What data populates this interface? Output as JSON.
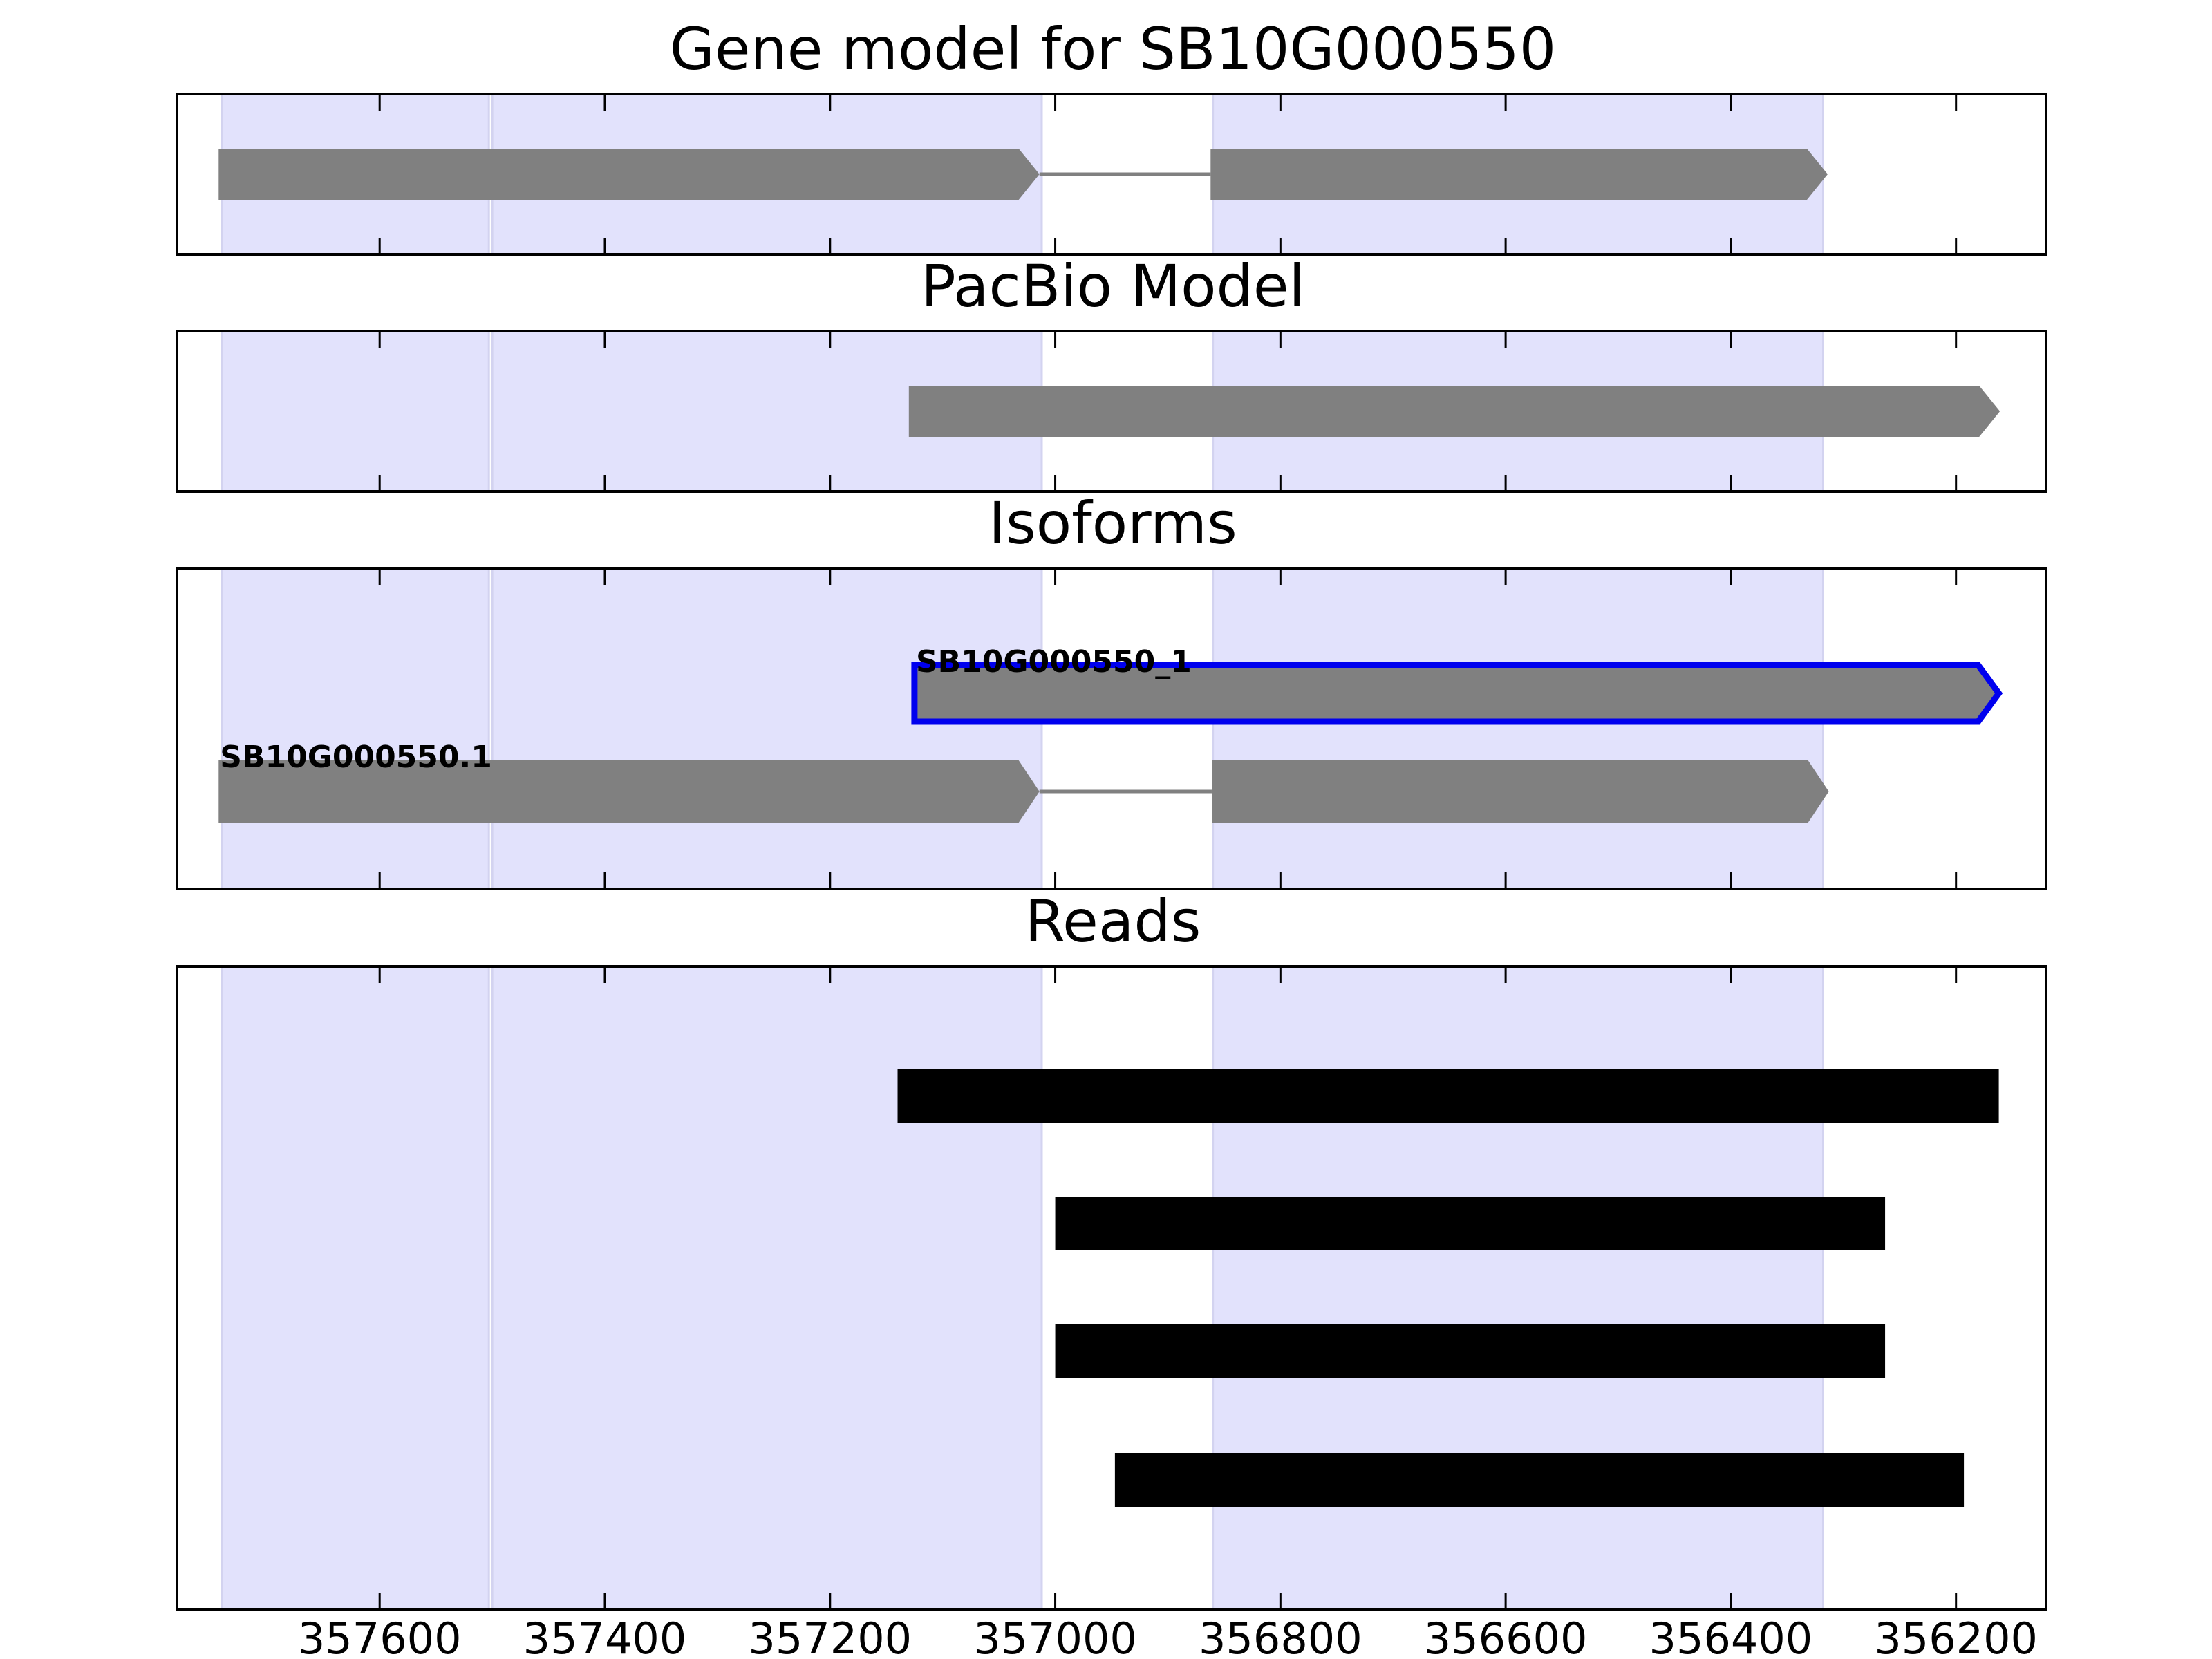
{
  "colors": {
    "shade": "#e2e2fc",
    "shade_edge": "#d3d3f0",
    "feature": "#808080",
    "intron_line": "#808080",
    "highlight_border": "#0000ee",
    "read": "#000000",
    "frame": "#000000"
  },
  "chart_data": {
    "type": "gene-track",
    "x_axis": {
      "lim": [
        357780,
        356120
      ],
      "ticks": [
        357600,
        357400,
        357200,
        357000,
        356800,
        356600,
        356400,
        356200
      ],
      "reversed": true
    },
    "shaded_regions": [
      [
        357740,
        357503
      ],
      [
        357500,
        357012
      ],
      [
        356860,
        356318
      ]
    ],
    "panels": [
      {
        "title": "Gene model for SB10G000550",
        "tracks": [
          {
            "label": "",
            "highlight": false,
            "lane": 0,
            "exons": [
              [
                357743,
                357014
              ],
              [
                356862,
                356314
              ]
            ],
            "introns": [
              [
                357014,
                356862
              ]
            ]
          }
        ]
      },
      {
        "title": "PacBio Model",
        "tracks": [
          {
            "label": "",
            "highlight": false,
            "lane": 0,
            "exons": [
              [
                357130,
                356161
              ]
            ],
            "introns": []
          }
        ]
      },
      {
        "title": "Isoforms",
        "tracks": [
          {
            "label": "SB10G000550_1",
            "highlight": true,
            "lane": 0,
            "exons": [
              [
                357125,
                356162
              ]
            ],
            "introns": []
          },
          {
            "label": "SB10G000550.1",
            "highlight": false,
            "lane": 1,
            "exons": [
              [
                357743,
                357014
              ],
              [
                356861,
                356313
              ]
            ],
            "introns": [
              [
                357014,
                356861
              ]
            ]
          }
        ]
      },
      {
        "title": "Reads",
        "reads": [
          [
            357140,
            356162
          ],
          [
            357000,
            356263
          ],
          [
            357000,
            356263
          ],
          [
            356947,
            356193
          ]
        ]
      }
    ]
  }
}
